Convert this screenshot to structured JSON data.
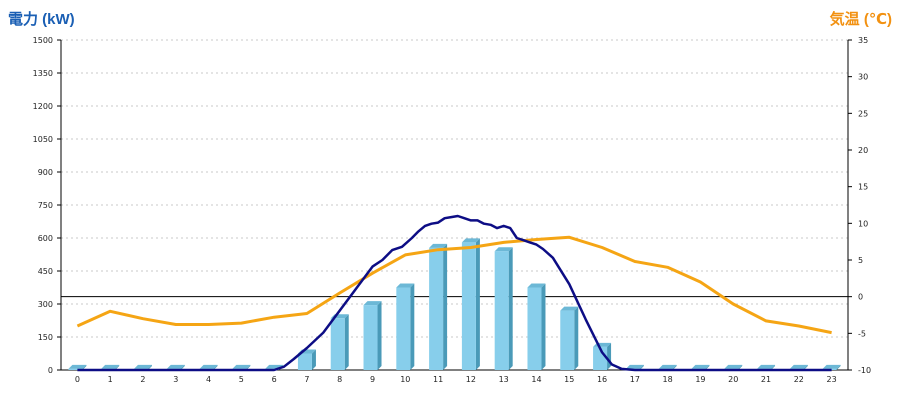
{
  "colors": {
    "left_title": "#1a5fb4",
    "right_title": "#f29111",
    "bar_front": "#87ceeb",
    "bar_side": "#4a9ab8",
    "bar_top": "#6cb8d6",
    "power_line": "#0d0d85",
    "temp_line": "#f5a514",
    "grid": "#c8c8c8",
    "zero_line": "#000000"
  },
  "chart_data": {
    "type": "bar",
    "left_axis_label": "電力 (kW)",
    "right_axis_label": "気温 (℃)",
    "left_ticks": [
      "1500",
      "1350",
      "1200",
      "1050",
      "900",
      "750",
      "600",
      "450",
      "300",
      "150",
      "0"
    ],
    "right_ticks": [
      "35",
      "30",
      "25",
      "20",
      "15",
      "10",
      "5",
      "0",
      "-5",
      "-10"
    ],
    "ylim_left": [
      0,
      1500
    ],
    "ylim_right": [
      -10,
      35
    ],
    "categories": [
      "0",
      "1",
      "2",
      "3",
      "4",
      "5",
      "6",
      "7",
      "8",
      "9",
      "10",
      "11",
      "12",
      "13",
      "14",
      "15",
      "16",
      "17",
      "18",
      "19",
      "20",
      "21",
      "22",
      "23"
    ],
    "series": [
      {
        "kind": "bar",
        "axis": "left",
        "values": [
          5,
          5,
          5,
          5,
          5,
          5,
          5,
          75,
          235,
          295,
          375,
          555,
          580,
          540,
          375,
          270,
          105,
          5,
          5,
          5,
          5,
          5,
          5,
          5
        ]
      },
      {
        "kind": "line",
        "axis": "left",
        "x": [
          0,
          1,
          2,
          3,
          4,
          5,
          6,
          6.3,
          6.6,
          7,
          7.5,
          8,
          8.5,
          9,
          9.3,
          9.6,
          9.9,
          10.2,
          10.4,
          10.6,
          10.8,
          11,
          11.2,
          11.4,
          11.6,
          11.8,
          12,
          12.2,
          12.4,
          12.6,
          12.8,
          13,
          13.2,
          13.4,
          13.6,
          13.8,
          14,
          14.2,
          14.5,
          15,
          15.5,
          16,
          16.3,
          16.6,
          17,
          18,
          19,
          20,
          21,
          22,
          23
        ],
        "values": [
          0,
          0,
          0,
          0,
          0,
          0,
          0,
          15,
          50,
          100,
          170,
          270,
          370,
          470,
          500,
          545,
          560,
          600,
          630,
          655,
          665,
          670,
          690,
          695,
          700,
          690,
          680,
          680,
          665,
          660,
          645,
          655,
          645,
          600,
          590,
          580,
          570,
          550,
          510,
          390,
          230,
          80,
          25,
          5,
          0,
          0,
          0,
          0,
          0,
          0,
          0
        ]
      },
      {
        "kind": "line",
        "axis": "right",
        "values": [
          -4,
          -2,
          -3,
          -3.8,
          -3.8,
          -3.6,
          -2.8,
          -2.3,
          0.5,
          3.2,
          5.7,
          6.4,
          6.7,
          7.4,
          7.8,
          8.1,
          6.7,
          4.8,
          4,
          2,
          -1,
          -3.3,
          -4,
          -4.9
        ]
      }
    ]
  }
}
